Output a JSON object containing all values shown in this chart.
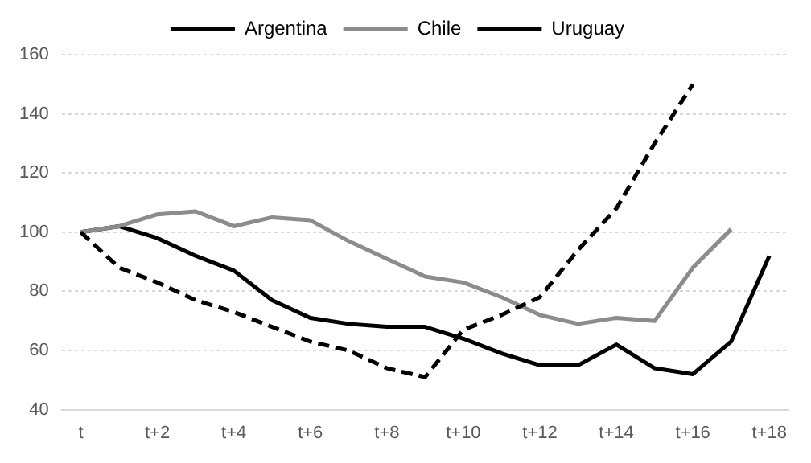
{
  "chart_data": {
    "type": "line",
    "categories": [
      "t",
      null,
      "t+2",
      null,
      "t+4",
      null,
      "t+6",
      null,
      "t+8",
      null,
      "t+10",
      null,
      "t+12",
      null,
      "t+14",
      null,
      "t+16",
      null,
      "t+18"
    ],
    "series": [
      {
        "name": "Argentina",
        "color": "#000000",
        "line_style": "dashed",
        "values": [
          100,
          88,
          83,
          77,
          73,
          68,
          63,
          60,
          54,
          51,
          67,
          72,
          78,
          94,
          108,
          130,
          150,
          null,
          null
        ]
      },
      {
        "name": "Chile",
        "color": "#8c8c8c",
        "values": [
          100,
          102,
          106,
          107,
          102,
          105,
          104,
          97,
          91,
          85,
          83,
          78,
          72,
          69,
          71,
          70,
          88,
          101,
          null
        ]
      },
      {
        "name": "Uruguay",
        "color": "#000000",
        "values": [
          100,
          102,
          98,
          92,
          87,
          77,
          71,
          69,
          68,
          68,
          64,
          59,
          55,
          55,
          62,
          54,
          52,
          63,
          92
        ]
      }
    ],
    "ylim": [
      40,
      160
    ],
    "yticks": [
      40,
      60,
      80,
      100,
      120,
      140,
      160
    ],
    "grid": "y",
    "legend": "top",
    "marker": "none",
    "line_style": "solid"
  }
}
